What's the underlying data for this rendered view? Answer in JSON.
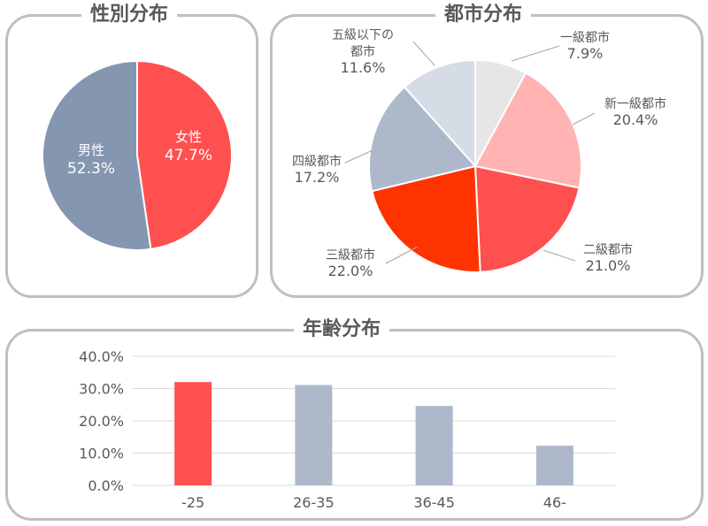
{
  "gender": {
    "title": "性別分布",
    "chart_data": {
      "type": "pie",
      "slices": [
        {
          "label": "女性",
          "value": 47.7,
          "text": "47.7%",
          "color": "#ff5050"
        },
        {
          "label": "男性",
          "value": 52.3,
          "text": "52.3%",
          "color": "#8496b0"
        }
      ]
    }
  },
  "city": {
    "title": "都市分布",
    "chart_data": {
      "type": "pie",
      "slices": [
        {
          "label": "一級都市",
          "value": 7.9,
          "text": "7.9%",
          "color": "#e7e6e6"
        },
        {
          "label": "新一級都市",
          "value": 20.4,
          "text": "20.4%",
          "color": "#ffb3b3"
        },
        {
          "label": "二級都市",
          "value": 21.0,
          "text": "21.0%",
          "color": "#ff5050"
        },
        {
          "label": "三級都市",
          "value": 22.0,
          "text": "22.0%",
          "color": "#ff3300"
        },
        {
          "label": "四級都市",
          "value": 17.2,
          "text": "17.2%",
          "color": "#adb9ca"
        },
        {
          "label": "五級以下の都市",
          "label_lines": [
            "五級以下の",
            "都市"
          ],
          "value": 11.6,
          "text": "11.6%",
          "color": "#d6dce5"
        }
      ]
    }
  },
  "age": {
    "title": "年齢分布",
    "chart_data": {
      "type": "bar",
      "categories": [
        "-25",
        "26-35",
        "36-45",
        "46-"
      ],
      "values": [
        32.0,
        31.1,
        24.6,
        12.3
      ],
      "colors": [
        "#ff5050",
        "#adb9ca",
        "#adb9ca",
        "#adb9ca"
      ],
      "ylim": [
        0,
        40
      ],
      "yticks": [
        "0.0%",
        "10.0%",
        "20.0%",
        "30.0%",
        "40.0%"
      ],
      "grid": true
    }
  }
}
